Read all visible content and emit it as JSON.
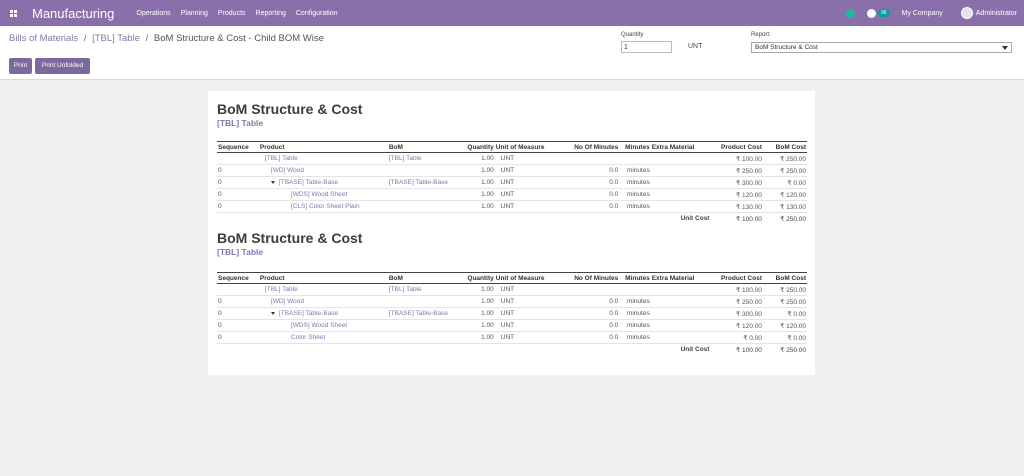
{
  "navbar": {
    "app_title": "Manufacturing",
    "menu": [
      "Operations",
      "Planning",
      "Products",
      "Reporting",
      "Configuration"
    ],
    "badge": "96",
    "company": "My Company",
    "user": "Administrator"
  },
  "breadcrumb": {
    "items": [
      "Bills of Materials",
      "[TBL] Table"
    ],
    "current": "BoM Structure & Cost - Child BOM Wise",
    "separator": "/"
  },
  "buttons": {
    "print": "Print",
    "print_unfolded": "Print Unfolded"
  },
  "quantity": {
    "label": "Quantity",
    "value": "1",
    "uom": "UNT"
  },
  "report": {
    "label": "Report:",
    "selected": "BoM Structure & Cost"
  },
  "headers": [
    "Sequence",
    "Product",
    "BoM",
    "Quantity",
    "Unit of Measure",
    "No Of Minutes",
    "Minutes",
    "Extra Material",
    "Product Cost",
    "BoM Cost"
  ],
  "sections": [
    {
      "title": "BoM Structure & Cost",
      "subtitle": "[TBL] Table",
      "rows": [
        {
          "seq": "",
          "product": "[TBL] Table",
          "bom": "[TBL] Table",
          "qty": "1.00",
          "uom": "UNT",
          "nom": "",
          "min": "",
          "extra": "",
          "pcost": "₹ 100.00",
          "bcost": "₹ 250.00",
          "indent": 1,
          "caret": false
        },
        {
          "seq": "0",
          "product": "[WD] Wood",
          "bom": "",
          "qty": "1.00",
          "uom": "UNT",
          "nom": "0.0",
          "min": "minutes",
          "extra": "",
          "pcost": "₹ 250.00",
          "bcost": "₹ 250.00",
          "indent": 2,
          "caret": false
        },
        {
          "seq": "0",
          "product": "[TBASE] Table-Base",
          "bom": "[TBASE] Table-Base",
          "qty": "1.00",
          "uom": "UNT",
          "nom": "0.0",
          "min": "minutes",
          "extra": "",
          "pcost": "₹ 300.00",
          "bcost": "₹ 0.00",
          "indent": 2,
          "caret": true
        },
        {
          "seq": "0",
          "product": "[WDS] Wood Sheet",
          "bom": "",
          "qty": "1.00",
          "uom": "UNT",
          "nom": "0.0",
          "min": "minutes",
          "extra": "",
          "pcost": "₹ 120.00",
          "bcost": "₹ 120.00",
          "indent": 3,
          "caret": false
        },
        {
          "seq": "0",
          "product": "[CLS] Color Sheet Plain",
          "bom": "",
          "qty": "1.00",
          "uom": "UNT",
          "nom": "0.0",
          "min": "minutes",
          "extra": "",
          "pcost": "₹ 130.00",
          "bcost": "₹ 130.00",
          "indent": 3,
          "caret": false
        }
      ],
      "total": {
        "label": "Unit Cost",
        "pcost": "₹ 100.00",
        "bcost": "₹ 250.00"
      }
    },
    {
      "title": "BoM Structure & Cost",
      "subtitle": "[TBL] Table",
      "rows": [
        {
          "seq": "",
          "product": "[TBL] Table",
          "bom": "[TBL] Table",
          "qty": "1.00",
          "uom": "UNT",
          "nom": "",
          "min": "",
          "extra": "",
          "pcost": "₹ 100.00",
          "bcost": "₹ 250.00",
          "indent": 1,
          "caret": false
        },
        {
          "seq": "0",
          "product": "[WD] Wood",
          "bom": "",
          "qty": "1.00",
          "uom": "UNT",
          "nom": "0.0",
          "min": "minutes",
          "extra": "",
          "pcost": "₹ 250.00",
          "bcost": "₹ 250.00",
          "indent": 2,
          "caret": false
        },
        {
          "seq": "0",
          "product": "[TBASE] Table-Base",
          "bom": "[TBASE] Table-Base",
          "qty": "1.00",
          "uom": "UNT",
          "nom": "0.0",
          "min": "minutes",
          "extra": "",
          "pcost": "₹ 300.00",
          "bcost": "₹ 0.00",
          "indent": 2,
          "caret": true
        },
        {
          "seq": "0",
          "product": "[WDS] Wood Sheet",
          "bom": "",
          "qty": "1.00",
          "uom": "UNT",
          "nom": "0.0",
          "min": "minutes",
          "extra": "",
          "pcost": "₹ 120.00",
          "bcost": "₹ 120.00",
          "indent": 3,
          "caret": false
        },
        {
          "seq": "0",
          "product": "Color Sheet",
          "bom": "",
          "qty": "1.00",
          "uom": "UNT",
          "nom": "0.0",
          "min": "minutes",
          "extra": "",
          "pcost": "₹ 0.00",
          "bcost": "₹ 0.00",
          "indent": 3,
          "caret": false
        }
      ],
      "total": {
        "label": "Unit Cost",
        "pcost": "₹ 100.00",
        "bcost": "₹ 250.00"
      }
    }
  ]
}
